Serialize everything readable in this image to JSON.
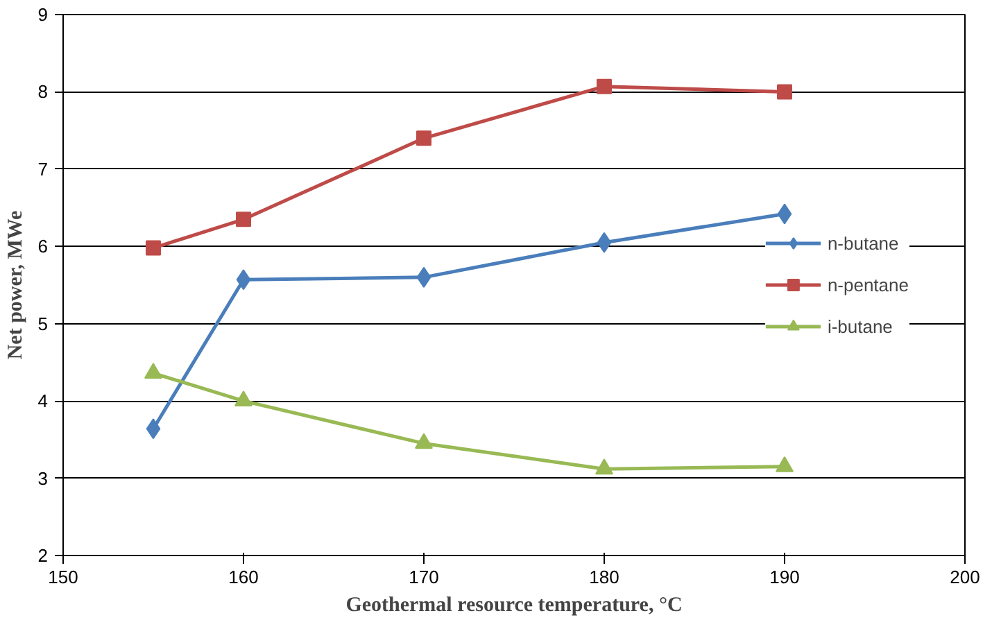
{
  "chart_data": {
    "type": "line",
    "xlabel": "Geothermal resource temperature, °C",
    "ylabel": "Net power, MWe",
    "x": [
      155,
      160,
      170,
      180,
      190
    ],
    "series": [
      {
        "name": "n-butane",
        "color": "#4a7ebb",
        "marker": "diamond",
        "values": [
          3.64,
          5.57,
          5.6,
          6.05,
          6.42
        ]
      },
      {
        "name": "n-pentane",
        "color": "#be4b48",
        "marker": "square",
        "values": [
          5.98,
          6.35,
          7.4,
          8.07,
          8.0
        ]
      },
      {
        "name": "i-butane",
        "color": "#98b954",
        "marker": "triangle",
        "values": [
          4.36,
          4.0,
          3.45,
          3.12,
          3.15
        ]
      }
    ],
    "xlim": [
      150,
      200
    ],
    "xticks": [
      150,
      160,
      170,
      180,
      190,
      200
    ],
    "ylim": [
      2,
      9
    ],
    "yticks": [
      2,
      3,
      4,
      5,
      6,
      7,
      8,
      9
    ],
    "grid": "y",
    "legend": "right"
  }
}
